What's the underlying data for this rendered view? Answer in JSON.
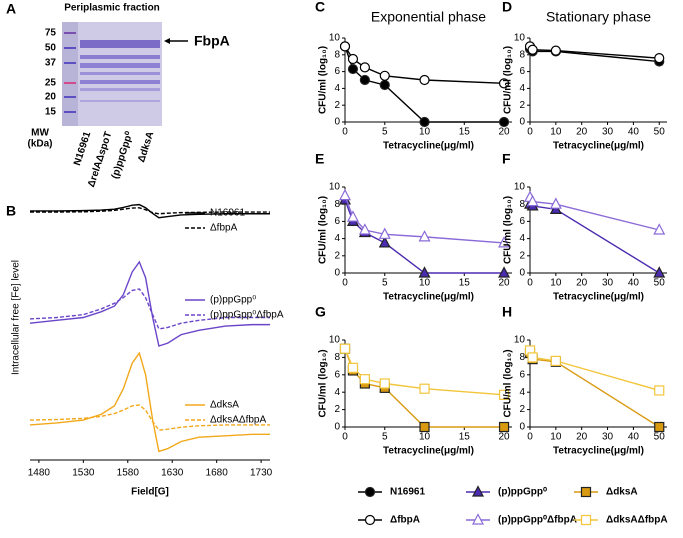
{
  "gel": {
    "label": "A",
    "title": "Periplasmic fraction",
    "mw_ticks": [
      "75",
      "50",
      "37",
      "25",
      "20",
      "15"
    ],
    "mw_unit": [
      "MW",
      "(kDa)"
    ],
    "lanes": [
      "N16961",
      "ΔrelAΔspoT",
      "(p)ppGpp⁰",
      "ΔdksA"
    ],
    "band_label": "FbpA"
  },
  "chart_data": [
    {
      "type": "line",
      "label": "B",
      "x_label": "Field[G]",
      "y_label": "Intracellular free [Fe] level",
      "x": [
        1470,
        1500,
        1530,
        1550,
        1565,
        1575,
        1585,
        1593,
        1600,
        1608,
        1615,
        1625,
        1640,
        1660,
        1690,
        1720,
        1740
      ],
      "xlim": [
        1470,
        1740
      ],
      "xticks": [
        1480,
        1530,
        1580,
        1630,
        1680,
        1730
      ],
      "ylim": [
        0,
        100
      ],
      "series": [
        {
          "name": "N16961",
          "color": "#000000",
          "dash": false,
          "values": [
            87.4,
            87.4,
            87.5,
            87.7,
            88,
            88.6,
            89.4,
            89.6,
            88.5,
            86.5,
            85,
            85.4,
            86,
            86.2,
            86.4,
            86.4,
            86.4
          ]
        },
        {
          "name": "ΔfbpA",
          "color": "#000000",
          "dash": true,
          "values": [
            87,
            87,
            87.1,
            87.3,
            87.6,
            88,
            88.4,
            88.5,
            87.8,
            86.8,
            86.4,
            86.6,
            86.8,
            86.9,
            87,
            87,
            87
          ]
        },
        {
          "name": "(p)ppGpp⁰",
          "color": "#6a45c9",
          "dash": false,
          "values": [
            48,
            49,
            50,
            52,
            54,
            58,
            66,
            69.5,
            64,
            50,
            40,
            41,
            44,
            45.5,
            47,
            47.5,
            47.5
          ]
        },
        {
          "name": "(p)ppGpp⁰ΔfbpA",
          "color": "#6a45c9",
          "dash": true,
          "values": [
            49.5,
            50,
            51,
            53,
            55,
            57,
            59.5,
            60,
            57,
            51,
            46,
            46.5,
            48,
            49,
            50,
            50,
            50
          ]
        },
        {
          "name": "ΔdksA",
          "color": "#f3a81b",
          "dash": false,
          "values": [
            12.3,
            13,
            14,
            16,
            19,
            25,
            34,
            37.5,
            30,
            14,
            3,
            4,
            6.5,
            8,
            8.5,
            9,
            9
          ]
        },
        {
          "name": "ΔdksAΔfbpA",
          "color": "#f3a81b",
          "dash": true,
          "values": [
            14,
            14.2,
            14.6,
            15.3,
            16.3,
            17.5,
            19,
            19.3,
            17.5,
            13.5,
            10.5,
            10.8,
            11.5,
            12,
            12.3,
            12.3,
            12.3
          ]
        }
      ]
    },
    {
      "type": "line",
      "label": "C",
      "title": "Exponential phase",
      "x_label": "Tetracycline(μg/ml)",
      "y_label": "CFU/ml (log₁₀)",
      "x": [
        0,
        1,
        2.5,
        5,
        10,
        20
      ],
      "xlim": [
        0,
        21
      ],
      "xticks": [
        0,
        5,
        10,
        15,
        20
      ],
      "ylim": [
        0,
        10
      ],
      "yticks": [
        0,
        2,
        4,
        6,
        8,
        10
      ],
      "series": [
        {
          "color": "#000000",
          "marker": "circle",
          "filled": true,
          "values": [
            9,
            6.3,
            5,
            4.4,
            0,
            0
          ]
        },
        {
          "color": "#000000",
          "marker": "circle",
          "filled": false,
          "values": [
            9,
            7.5,
            6.5,
            5.5,
            5,
            4.6
          ]
        }
      ]
    },
    {
      "type": "line",
      "label": "D",
      "title": "Stationary phase",
      "x_label": "Tetracycline(μg/ml)",
      "y_label": "CFU/ml (log₁₀)",
      "x": [
        0,
        1,
        10,
        50
      ],
      "xlim": [
        0,
        53
      ],
      "xticks": [
        0,
        10,
        20,
        30,
        40,
        50
      ],
      "ylim": [
        0,
        10
      ],
      "yticks": [
        0,
        2,
        4,
        6,
        8,
        10
      ],
      "series": [
        {
          "color": "#000000",
          "marker": "circle",
          "filled": true,
          "values": [
            8.7,
            8.4,
            8.4,
            7.2
          ]
        },
        {
          "color": "#000000",
          "marker": "circle",
          "filled": false,
          "values": [
            9,
            8.6,
            8.5,
            7.6
          ]
        }
      ]
    },
    {
      "type": "line",
      "label": "E",
      "x_label": "Tetracycline(μg/ml)",
      "y_label": "CFU/ml (log₁₀)",
      "x": [
        0,
        1,
        2.5,
        5,
        10,
        20
      ],
      "xlim": [
        0,
        21
      ],
      "xticks": [
        0,
        5,
        10,
        15,
        20
      ],
      "ylim": [
        0,
        10
      ],
      "yticks": [
        0,
        2,
        4,
        6,
        8,
        10
      ],
      "series": [
        {
          "color": "#4b2bb0",
          "marker": "triangle",
          "filled": true,
          "values": [
            8.5,
            6,
            4.7,
            3.5,
            0,
            0
          ]
        },
        {
          "color": "#8a6ad8",
          "marker": "triangle",
          "filled": false,
          "values": [
            9,
            6.5,
            5,
            4.5,
            4.2,
            3.5
          ]
        }
      ]
    },
    {
      "type": "line",
      "label": "F",
      "x_label": "Tetracycline(μg/ml)",
      "y_label": "CFU/ml (log₁₀)",
      "x": [
        0,
        1,
        10,
        50
      ],
      "xlim": [
        0,
        53
      ],
      "xticks": [
        0,
        10,
        20,
        30,
        40,
        50
      ],
      "ylim": [
        0,
        10
      ],
      "yticks": [
        0,
        2,
        4,
        6,
        8,
        10
      ],
      "series": [
        {
          "color": "#4b2bb0",
          "marker": "triangle",
          "filled": true,
          "values": [
            8,
            7.8,
            7.4,
            0
          ]
        },
        {
          "color": "#8a6ad8",
          "marker": "triangle",
          "filled": false,
          "values": [
            8.8,
            8.3,
            8,
            5
          ]
        }
      ]
    },
    {
      "type": "line",
      "label": "G",
      "x_label": "Tetracycline(μg/ml)",
      "y_label": "CFU/ml (log₁₀)",
      "x": [
        0,
        1,
        2.5,
        5,
        10,
        20
      ],
      "xlim": [
        0,
        21
      ],
      "xticks": [
        0,
        5,
        10,
        15,
        20
      ],
      "ylim": [
        0,
        10
      ],
      "yticks": [
        0,
        2,
        4,
        6,
        8,
        10
      ],
      "series": [
        {
          "color": "#d99a12",
          "marker": "square",
          "filled": true,
          "values": [
            9,
            6.5,
            5,
            4.5,
            0,
            0
          ]
        },
        {
          "color": "#f2c53a",
          "marker": "square",
          "filled": false,
          "values": [
            9,
            6.8,
            5.5,
            5,
            4.4,
            3.7
          ]
        }
      ]
    },
    {
      "type": "line",
      "label": "H",
      "x_label": "Tetracycline(μg/ml)",
      "y_label": "CFU/ml (log₁₀)",
      "x": [
        0,
        1,
        10,
        50
      ],
      "xlim": [
        0,
        53
      ],
      "xticks": [
        0,
        10,
        20,
        30,
        40,
        50
      ],
      "ylim": [
        0,
        10
      ],
      "yticks": [
        0,
        2,
        4,
        6,
        8,
        10
      ],
      "series": [
        {
          "color": "#d99a12",
          "marker": "square",
          "filled": true,
          "values": [
            8.5,
            7.8,
            7.5,
            0
          ]
        },
        {
          "color": "#f2c53a",
          "marker": "square",
          "filled": false,
          "values": [
            8.8,
            8,
            7.6,
            4.2
          ]
        }
      ]
    }
  ],
  "legend": [
    {
      "name": "N16961",
      "color": "#000000",
      "marker": "circle",
      "filled": true
    },
    {
      "name": "ΔfbpA",
      "color": "#000000",
      "marker": "circle",
      "filled": false
    },
    {
      "name": "(p)ppGpp⁰",
      "color": "#4b2bb0",
      "marker": "triangle",
      "filled": true
    },
    {
      "name": "(p)ppGpp⁰ΔfbpA",
      "color": "#8a6ad8",
      "marker": "triangle",
      "filled": false
    },
    {
      "name": "ΔdksA",
      "color": "#d99a12",
      "marker": "square",
      "filled": true
    },
    {
      "name": "ΔdksAΔfbpA",
      "color": "#f2c53a",
      "marker": "square",
      "filled": false
    }
  ]
}
